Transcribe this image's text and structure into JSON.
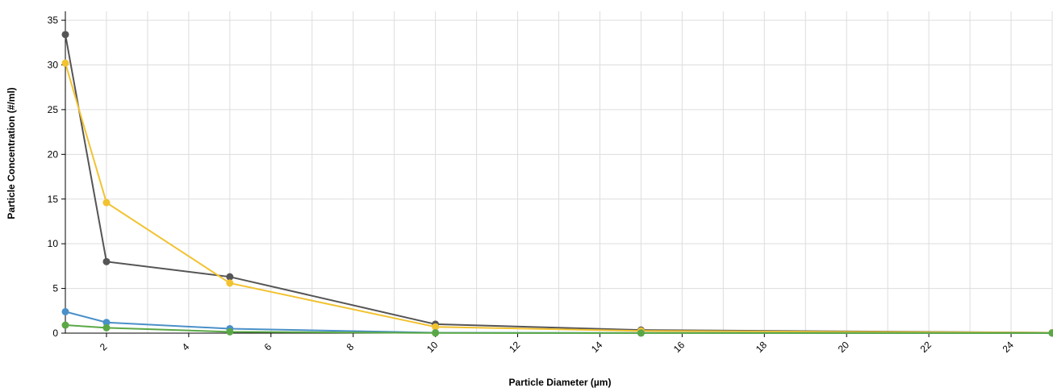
{
  "chart_data": {
    "type": "line",
    "title": "",
    "xlabel": "Particle Diameter (µm)",
    "ylabel": "Particle Concentration (#/ml)",
    "xlim": [
      1,
      25
    ],
    "ylim": [
      0,
      36
    ],
    "x_ticks": [
      2,
      4,
      6,
      8,
      10,
      12,
      14,
      16,
      18,
      20,
      22,
      24
    ],
    "y_ticks": [
      0,
      5,
      10,
      15,
      20,
      25,
      30,
      35
    ],
    "grid": true,
    "legend": "none",
    "series": [
      {
        "color": "#555555",
        "x": [
          1,
          2,
          5,
          10,
          15,
          25
        ],
        "y": [
          33.4,
          8.0,
          6.3,
          1.0,
          0.35,
          0.05
        ]
      },
      {
        "color": "#f2c230",
        "x": [
          1,
          2,
          5,
          10,
          15,
          25
        ],
        "y": [
          30.2,
          14.6,
          5.6,
          0.7,
          0.25,
          0.05
        ]
      },
      {
        "color": "#4a90c8",
        "x": [
          1,
          2,
          5,
          10,
          15,
          25
        ],
        "y": [
          2.4,
          1.2,
          0.5,
          0.05,
          0.02,
          0.01
        ]
      },
      {
        "color": "#5aa845",
        "x": [
          1,
          2,
          5,
          10,
          15,
          25
        ],
        "y": [
          0.9,
          0.6,
          0.15,
          0.02,
          0.01,
          0.01
        ]
      }
    ]
  }
}
